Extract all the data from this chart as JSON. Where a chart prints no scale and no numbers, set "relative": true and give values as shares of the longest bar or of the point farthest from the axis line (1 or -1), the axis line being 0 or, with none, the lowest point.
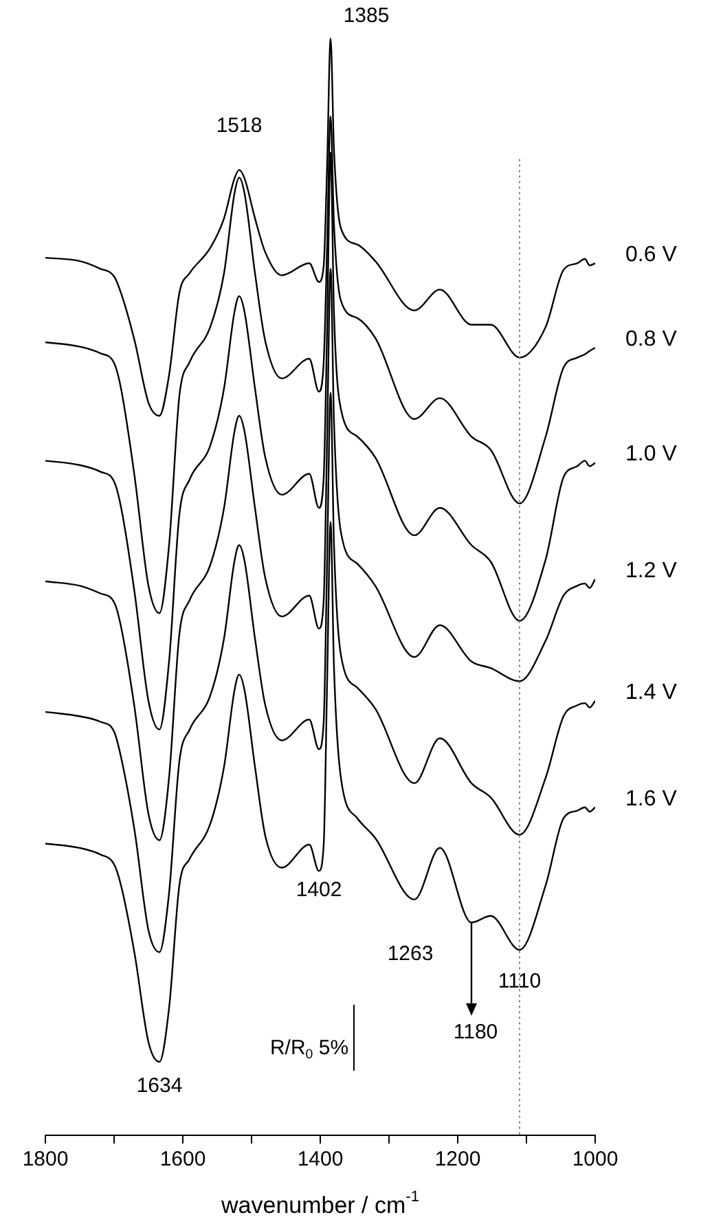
{
  "chart_data": {
    "type": "line",
    "relative": true,
    "xlabel": "wavenumber / cm$^{-1}$",
    "xlim": [
      1800,
      1000
    ],
    "xticks": [
      1800,
      {
        "value": 1700,
        "label": null
      },
      1600,
      {
        "value": 1500,
        "label": null
      },
      1400,
      {
        "value": 1300,
        "label": null
      },
      1200,
      {
        "value": 1100,
        "label": null
      },
      1000
    ],
    "x": [
      1800,
      1750,
      1720,
      1700,
      1690,
      1670,
      1650,
      1634,
      1620,
      1605,
      1590,
      1560,
      1540,
      1525,
      1518,
      1510,
      1495,
      1480,
      1456,
      1416,
      1402,
      1395,
      1390,
      1385,
      1380,
      1370,
      1346,
      1320,
      1263,
      1226,
      1180,
      1152,
      1110,
      1072,
      1046,
      1026,
      1015,
      1008,
      1000
    ],
    "series": [
      {
        "name": "0.6 V",
        "color": "#000000",
        "values": [
          0.8,
          0.797,
          0.79,
          0.783,
          0.768,
          0.724,
          0.668,
          0.656,
          0.693,
          0.768,
          0.786,
          0.809,
          0.836,
          0.872,
          0.88,
          0.872,
          0.836,
          0.805,
          0.784,
          0.795,
          0.778,
          0.793,
          0.885,
          1.0,
          0.898,
          0.827,
          0.812,
          0.797,
          0.752,
          0.771,
          0.739,
          0.739,
          0.709,
          0.737,
          0.789,
          0.795,
          0.799,
          0.793,
          0.795
        ]
      },
      {
        "name": "0.8 V",
        "color": "#000000",
        "values": [
          0.723,
          0.719,
          0.713,
          0.704,
          0.681,
          0.6,
          0.501,
          0.476,
          0.538,
          0.674,
          0.705,
          0.737,
          0.786,
          0.858,
          0.873,
          0.858,
          0.786,
          0.724,
          0.69,
          0.708,
          0.678,
          0.705,
          0.812,
          0.929,
          0.83,
          0.761,
          0.745,
          0.727,
          0.653,
          0.672,
          0.637,
          0.625,
          0.576,
          0.637,
          0.7,
          0.709,
          0.712,
          0.715,
          0.718
        ]
      },
      {
        "name": "1.0 V",
        "color": "#000000",
        "values": [
          0.615,
          0.611,
          0.605,
          0.596,
          0.573,
          0.494,
          0.396,
          0.37,
          0.432,
          0.566,
          0.598,
          0.629,
          0.681,
          0.75,
          0.765,
          0.75,
          0.681,
          0.618,
          0.584,
          0.603,
          0.572,
          0.6,
          0.737,
          0.896,
          0.749,
          0.662,
          0.637,
          0.618,
          0.547,
          0.572,
          0.538,
          0.523,
          0.469,
          0.525,
          0.6,
          0.61,
          0.615,
          0.61,
          0.613
        ]
      },
      {
        "name": "1.2 V",
        "color": "#000000",
        "values": [
          0.505,
          0.501,
          0.494,
          0.486,
          0.464,
          0.389,
          0.293,
          0.269,
          0.326,
          0.457,
          0.488,
          0.52,
          0.572,
          0.641,
          0.656,
          0.641,
          0.572,
          0.508,
          0.473,
          0.492,
          0.462,
          0.488,
          0.637,
          0.79,
          0.65,
          0.55,
          0.521,
          0.501,
          0.436,
          0.465,
          0.432,
          0.426,
          0.414,
          0.451,
          0.492,
          0.501,
          0.503,
          0.499,
          0.507
        ]
      },
      {
        "name": "1.4 V",
        "color": "#000000",
        "values": [
          0.386,
          0.382,
          0.377,
          0.368,
          0.345,
          0.277,
          0.187,
          0.167,
          0.221,
          0.341,
          0.37,
          0.401,
          0.453,
          0.523,
          0.538,
          0.523,
          0.453,
          0.392,
          0.36,
          0.379,
          0.352,
          0.377,
          0.525,
          0.677,
          0.538,
          0.438,
          0.408,
          0.389,
          0.321,
          0.362,
          0.321,
          0.308,
          0.274,
          0.326,
          0.382,
          0.392,
          0.394,
          0.39,
          0.396
        ]
      },
      {
        "name": "1.6 V",
        "color": "#000000",
        "values": [
          0.266,
          0.262,
          0.256,
          0.247,
          0.228,
          0.165,
          0.085,
          0.067,
          0.116,
          0.228,
          0.252,
          0.284,
          0.336,
          0.405,
          0.42,
          0.405,
          0.336,
          0.273,
          0.244,
          0.265,
          0.241,
          0.265,
          0.414,
          0.559,
          0.426,
          0.326,
          0.289,
          0.271,
          0.215,
          0.262,
          0.194,
          0.2,
          0.169,
          0.228,
          0.289,
          0.296,
          0.299,
          0.295,
          0.299
        ]
      }
    ],
    "ref_lines": [
      {
        "axis": "x",
        "value": 1110,
        "color": "#808080",
        "line_style": "dotted"
      }
    ],
    "annotations": [
      {
        "text": "1385",
        "x": 1385,
        "y": 1.0
      },
      {
        "text": "1518",
        "x": 1518,
        "y": 0.88
      },
      {
        "text": "1402",
        "x": 1402,
        "y": 0.241
      },
      {
        "text": "1634",
        "x": 1634,
        "y": 0.067
      },
      {
        "text": "1263",
        "x": 1263,
        "y": 0.215
      },
      {
        "text": "1110",
        "x": 1110,
        "y": 0.169
      },
      {
        "text": "1180",
        "x": 1180,
        "y": 0.194
      },
      "R/R$_{0}$ 5%"
    ]
  }
}
